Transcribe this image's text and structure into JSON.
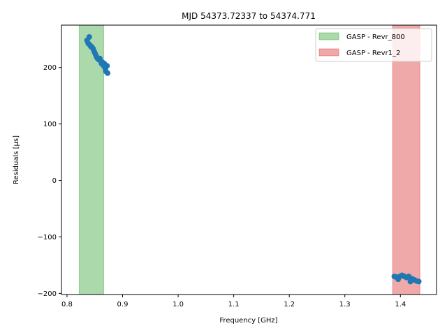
{
  "chart_data": {
    "type": "scatter",
    "title": "MJD 54373.72337 to 54374.771",
    "xlabel": "Frequency [GHz]",
    "ylabel": "Residuals [μs]",
    "xlim": [
      0.79,
      1.465
    ],
    "ylim": [
      -202,
      275
    ],
    "xticks": [
      0.8,
      0.9,
      1.0,
      1.1,
      1.2,
      1.3,
      1.4
    ],
    "xtick_labels": [
      "0.8",
      "0.9",
      "1.0",
      "1.1",
      "1.2",
      "1.3",
      "1.4"
    ],
    "yticks": [
      -200,
      -100,
      0,
      100,
      200
    ],
    "ytick_labels": [
      "−200",
      "−100",
      "0",
      "100",
      "200"
    ],
    "legend_position": "top-right",
    "bands": [
      {
        "label": "GASP - Revr_800",
        "x_range": [
          0.822,
          0.866
        ],
        "color": "#2ca02c"
      },
      {
        "label": "GASP - Revr1_2",
        "x_range": [
          1.386,
          1.435
        ],
        "color": "#d62728"
      }
    ],
    "series": [
      {
        "color": "#1f77b4",
        "points": [
          [
            0.836,
            248
          ],
          [
            0.838,
            243
          ],
          [
            0.84,
            254
          ],
          [
            0.841,
            240
          ],
          [
            0.843,
            237
          ],
          [
            0.845,
            236
          ],
          [
            0.847,
            233
          ],
          [
            0.849,
            228
          ],
          [
            0.851,
            224
          ],
          [
            0.853,
            219
          ],
          [
            0.855,
            216
          ],
          [
            0.857,
            214
          ],
          [
            0.859,
            216
          ],
          [
            0.861,
            211
          ],
          [
            0.862,
            207
          ],
          [
            0.864,
            209
          ],
          [
            0.866,
            203
          ],
          [
            0.867,
            207
          ],
          [
            0.869,
            198
          ],
          [
            0.87,
            193
          ],
          [
            0.872,
            203
          ],
          [
            0.873,
            190
          ],
          [
            1.389,
            -170
          ],
          [
            1.392,
            -171
          ],
          [
            1.396,
            -175
          ],
          [
            1.399,
            -170
          ],
          [
            1.403,
            -168
          ],
          [
            1.407,
            -170
          ],
          [
            1.411,
            -172
          ],
          [
            1.415,
            -170
          ],
          [
            1.418,
            -179
          ],
          [
            1.421,
            -174
          ],
          [
            1.425,
            -176
          ],
          [
            1.429,
            -178
          ],
          [
            1.433,
            -179
          ]
        ]
      }
    ]
  }
}
